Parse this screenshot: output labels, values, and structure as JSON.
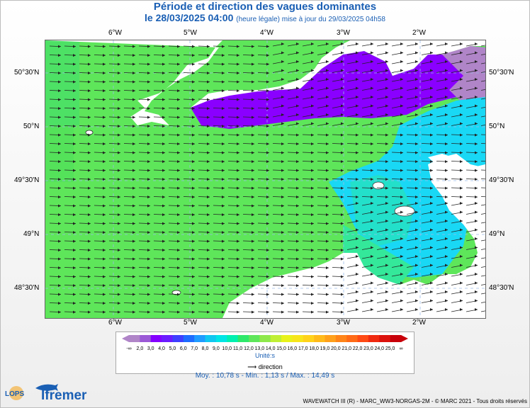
{
  "title_line1": "Période et direction des vagues dominantes",
  "title_line2_main": "le 28/03/2025 04:00",
  "title_line2_note": "(heure légale) mise à jour du 29/03/2025 04h58",
  "lon_labels": [
    "6°W",
    "5°W",
    "4°W",
    "3°W",
    "2°W"
  ],
  "lat_labels": [
    "50°30'N",
    "50°N",
    "49°30'N",
    "49°N",
    "48°30'N"
  ],
  "legend": {
    "values": [
      "-∞",
      "2,0",
      "3,0",
      "4,0",
      "5,0",
      "6,0",
      "7,0",
      "8,0",
      "9,0",
      "10,0",
      "11,0",
      "12,0",
      "13,0",
      "14,0",
      "15,0",
      "16,0",
      "17,0",
      "18,0",
      "19,0",
      "20,0",
      "21,0",
      "22,0",
      "23,0",
      "24,0",
      "25,0",
      "∞"
    ],
    "colors": [
      "#b085c8",
      "#9b59d6",
      "#8400ff",
      "#6a1cff",
      "#3f3fff",
      "#1e6cff",
      "#1f9cff",
      "#10c7f0",
      "#00e5e5",
      "#00f0b0",
      "#2ee86a",
      "#5ee65a",
      "#8ee84a",
      "#c0ef34",
      "#e8f21a",
      "#f7e51a",
      "#ffd21a",
      "#ffba1a",
      "#ffa01a",
      "#ff8418",
      "#ff6a16",
      "#ff4a14",
      "#f02a10",
      "#dc120c",
      "#c8000a"
    ],
    "units_label": "Unité:s",
    "direction_label": "direction"
  },
  "stats": "Moy. : 10,78 s   -   Min. : 1,13 s / Max. : 14,49 s",
  "footer": "WAVEWATCH III (R) - MARC_WW3-NORGAS-2M - © MARC 2021 - Tous droits réservés",
  "logo_lops": "LOPS",
  "logo_ifremer": "Ifremer",
  "map_colors": {
    "green": "#5ee65a",
    "purple": "#8a00ff",
    "light_purple": "#b085c8",
    "cyan": "#19d8f5",
    "light_cyan": "#00e5ee",
    "land": "#ffffff",
    "arrow": "#222222"
  }
}
